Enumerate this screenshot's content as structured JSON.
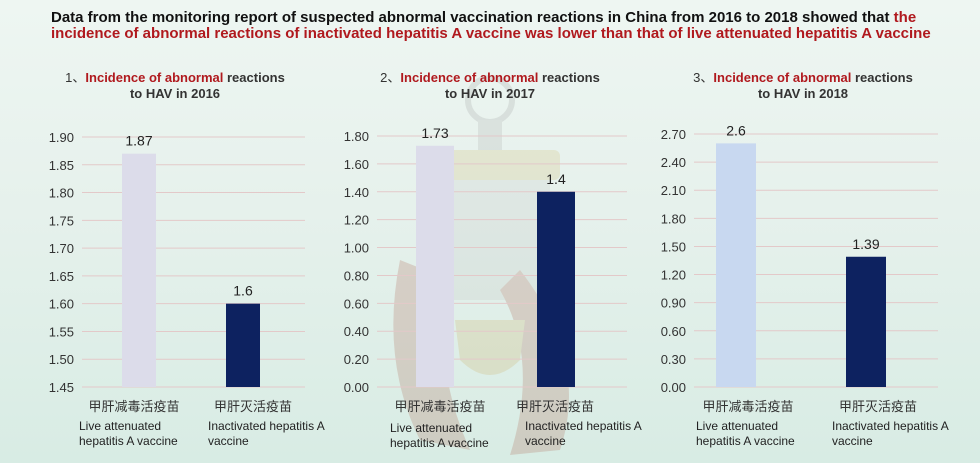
{
  "headline": {
    "lead": "Data from the monitoring report of suspected abnormal vaccination reactions in China from 2016 to 2018 showed that",
    "highlight": "the incidence of abnormal reactions of inactivated hepatitis A vaccine was lower than that of live attenuated hepatitis A vaccine"
  },
  "colors": {
    "live_2016": "#dcdcea",
    "live_2017": "#dcdcea",
    "live_2018": "#c8d8f0",
    "inactivated": "#0d2260",
    "grid": "#e3c9c9",
    "highlight": "#b0191e"
  },
  "chart_data": [
    {
      "type": "bar",
      "title_num": "1、",
      "title_red": "Incidence of abnormal",
      "title_rest": " reactions",
      "title_line2": "to HAV in 2016",
      "categories": [
        "甲肝减毒活疫苗",
        "甲肝灭活疫苗"
      ],
      "categories_en": [
        "Live attenuated hepatitis A vaccine",
        "Inactivated hepatitis A vaccine"
      ],
      "values": [
        1.87,
        1.6
      ],
      "value_labels": [
        "1.87",
        "1.6"
      ],
      "ylim": [
        1.45,
        1.9
      ],
      "yticks": [
        "1.90",
        "1.85",
        "1.80",
        "1.75",
        "1.70",
        "1.65",
        "1.60",
        "1.55",
        "1.50",
        "1.45"
      ],
      "grid": true
    },
    {
      "type": "bar",
      "title_num": "2、",
      "title_red": "Incidence of abnormal",
      "title_rest": " reactions",
      "title_line2": "to HAV in 2017",
      "categories": [
        "甲肝减毒活疫苗",
        "甲肝灭活疫苗"
      ],
      "categories_en": [
        "Live attenuated hepatitis A vaccine",
        "Inactivated hepatitis A vaccine"
      ],
      "values": [
        1.73,
        1.4
      ],
      "value_labels": [
        "1.73",
        "1.4"
      ],
      "ylim": [
        0,
        1.8
      ],
      "yticks": [
        "1.80",
        "1.60",
        "1.40",
        "1.20",
        "1.00",
        "0.80",
        "0.60",
        "0.40",
        "0.20",
        "0.00"
      ],
      "grid": true
    },
    {
      "type": "bar",
      "title_num": "3、",
      "title_red": "Incidence of abnormal",
      "title_rest": " reactions",
      "title_line2": "to HAV in 2018",
      "categories": [
        "甲肝减毒活疫苗",
        "甲肝灭活疫苗"
      ],
      "categories_en": [
        "Live attenuated hepatitis A vaccine",
        "Inactivated hepatitis A vaccine"
      ],
      "values": [
        2.6,
        1.39
      ],
      "value_labels": [
        "2.6",
        "1.39"
      ],
      "ylim": [
        0,
        2.7
      ],
      "yticks": [
        "2.70",
        "2.40",
        "2.10",
        "1.80",
        "1.50",
        "1.20",
        "0.90",
        "0.60",
        "0.30",
        "0.00"
      ],
      "grid": true
    }
  ]
}
